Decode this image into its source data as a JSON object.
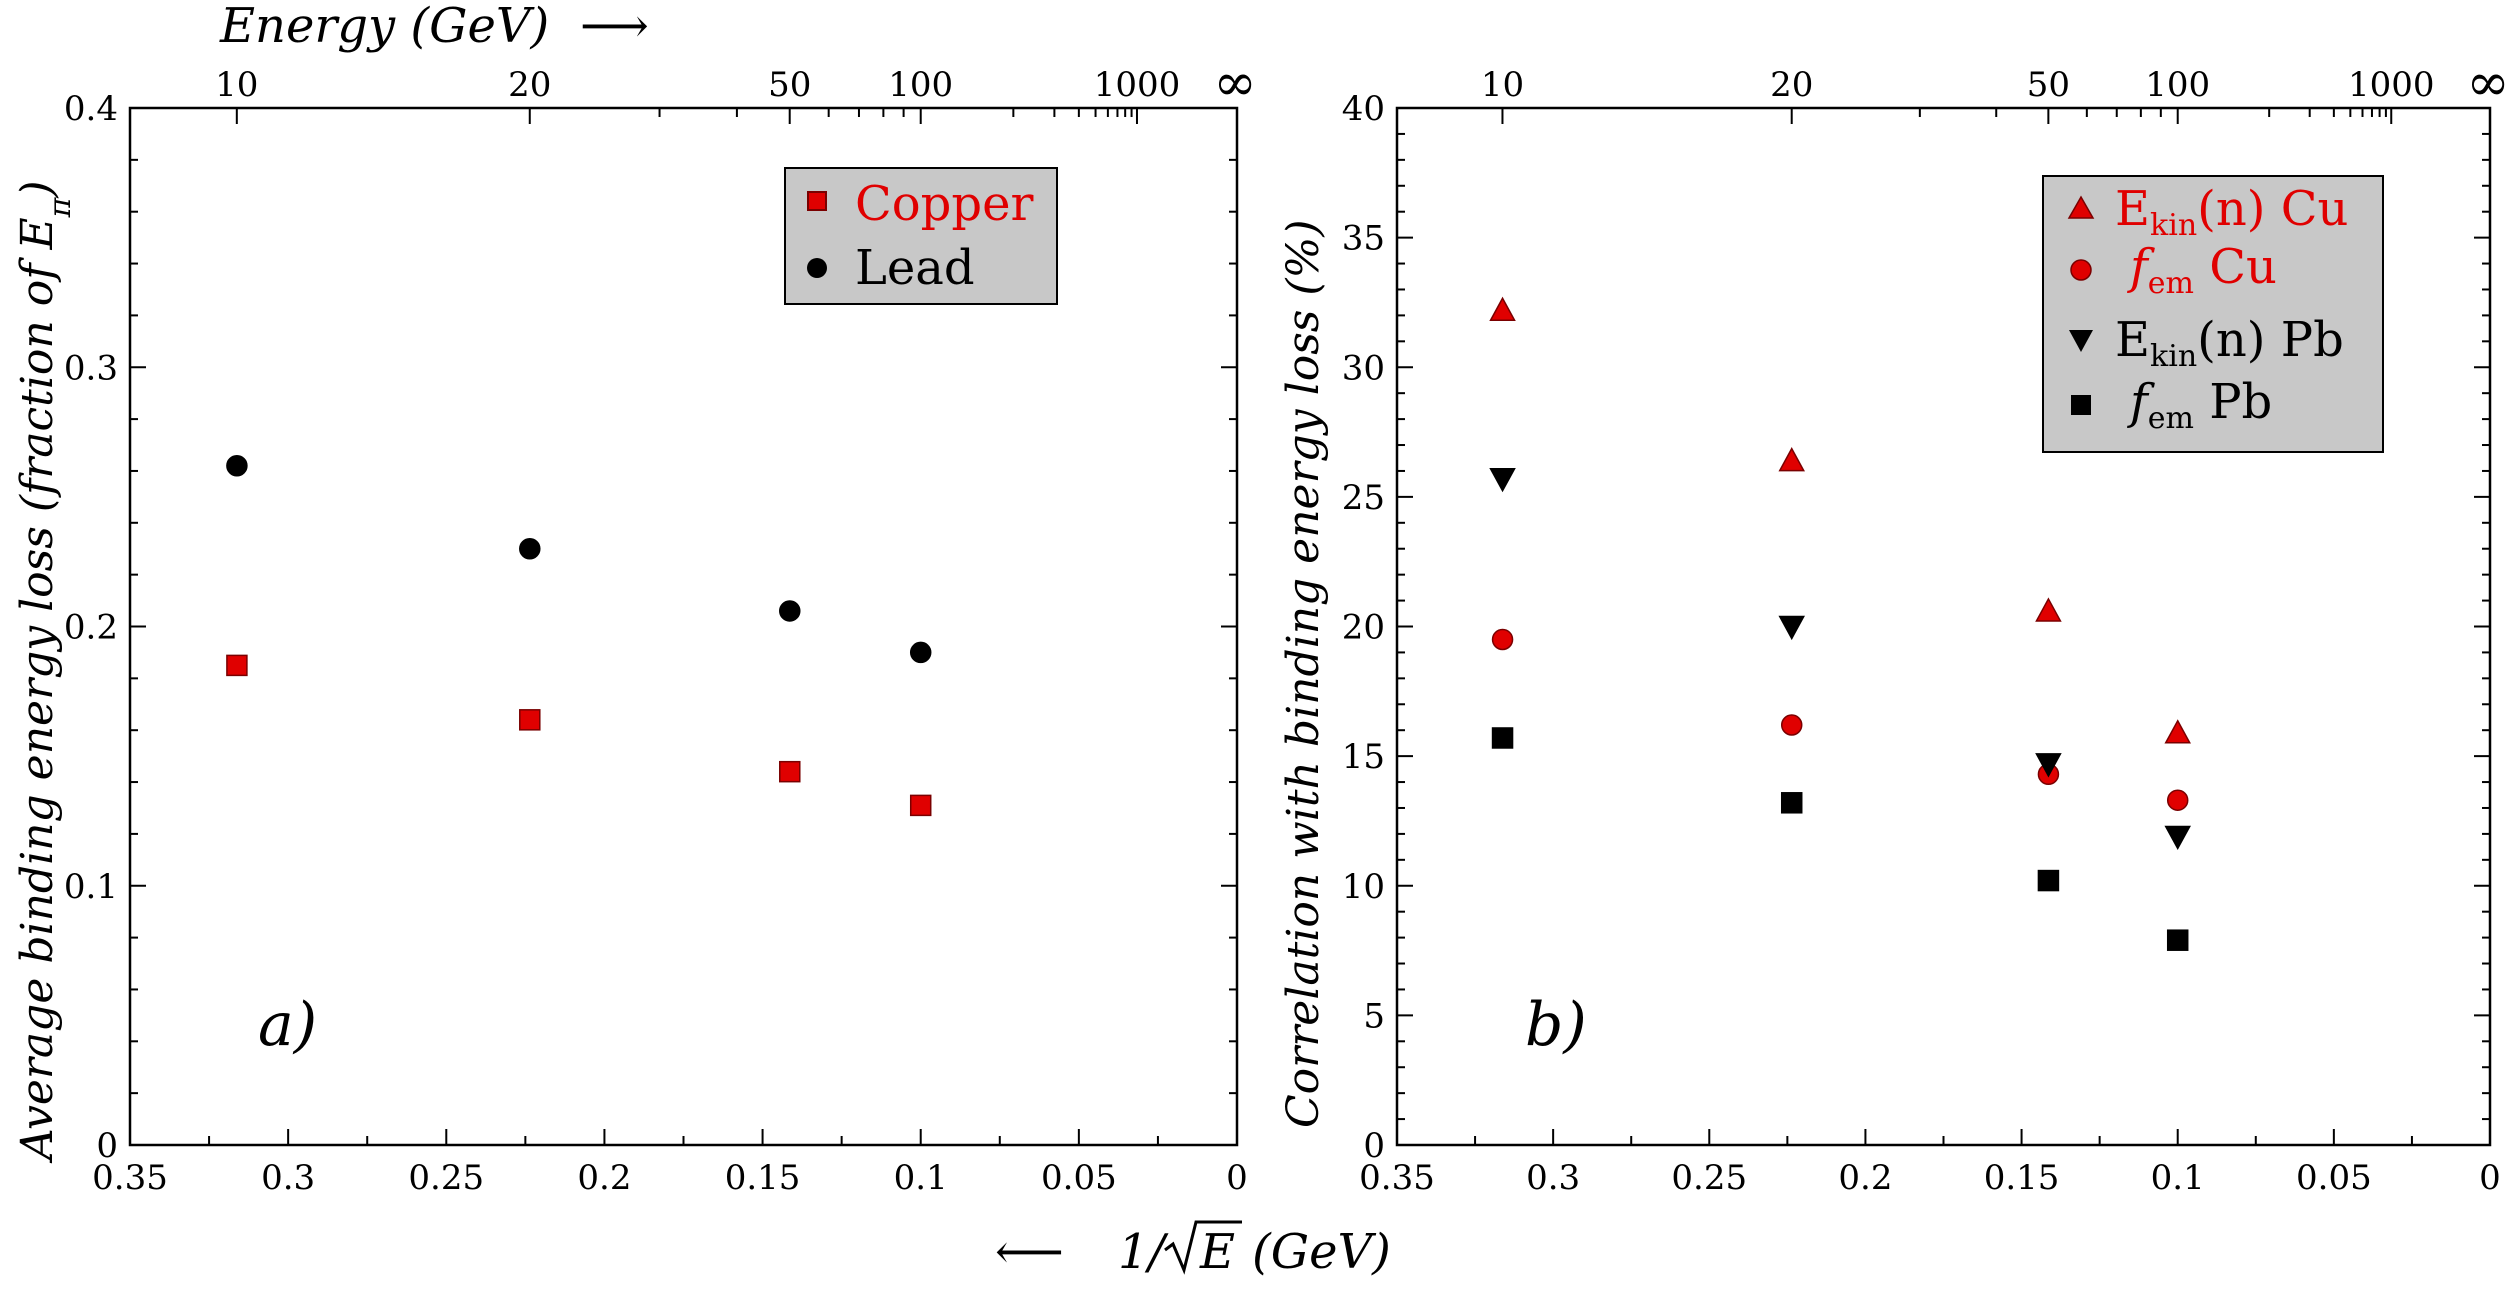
{
  "chart_data": [
    {
      "type": "scatter",
      "panel_tag": "a)",
      "ylabel_prefix": "Average binding energy loss (fraction of E",
      "ylabel_sub": "π",
      "ylabel_suffix": ")",
      "xlim": [
        0.35,
        0
      ],
      "ylim": [
        0,
        0.4
      ],
      "x_ticks": [
        "0.35",
        "0.3",
        "0.25",
        "0.2",
        "0.15",
        "0.1",
        "0.05",
        "0"
      ],
      "y_ticks": [
        "0",
        "0.1",
        "0.2",
        "0.3",
        "0.4"
      ],
      "top_ticks": [
        "10",
        "20",
        "50",
        "100",
        "1000"
      ],
      "legend_position": "top-right",
      "series": [
        {
          "name": "Copper",
          "marker": "square",
          "color": "#e00000",
          "x": [
            0.3162,
            0.2236,
            0.1414,
            0.1
          ],
          "y": [
            0.185,
            0.164,
            0.144,
            0.131
          ]
        },
        {
          "name": "Lead",
          "marker": "circle",
          "color": "#000000",
          "x": [
            0.3162,
            0.2236,
            0.1414,
            0.1
          ],
          "y": [
            0.262,
            0.23,
            0.206,
            0.19
          ]
        }
      ]
    },
    {
      "type": "scatter",
      "panel_tag": "b)",
      "ylabel": "Correlation with binding energy loss (%)",
      "xlim": [
        0.35,
        0
      ],
      "ylim": [
        0,
        40
      ],
      "x_ticks": [
        "0.35",
        "0.3",
        "0.25",
        "0.2",
        "0.15",
        "0.1",
        "0.05",
        "0"
      ],
      "y_ticks": [
        "0",
        "5",
        "10",
        "15",
        "20",
        "25",
        "30",
        "35",
        "40"
      ],
      "top_ticks": [
        "10",
        "20",
        "50",
        "100",
        "1000"
      ],
      "legend_position": "top-right",
      "series": [
        {
          "name_main": "E",
          "name_sub": "kin",
          "name_rest": "(n) Cu",
          "marker": "triangle-up",
          "color": "#e00000",
          "x": [
            0.3162,
            0.2236,
            0.1414,
            0.1
          ],
          "y": [
            32.2,
            26.4,
            20.6,
            15.9
          ]
        },
        {
          "name_main": "f",
          "name_sub": "em",
          "name_rest": " Cu",
          "marker": "circle",
          "color": "#e00000",
          "x": [
            0.3162,
            0.2236,
            0.1414,
            0.1
          ],
          "y": [
            19.5,
            16.2,
            14.3,
            13.3
          ]
        },
        {
          "name_main": "E",
          "name_sub": "kin",
          "name_rest": "(n) Pb",
          "marker": "triangle-down",
          "color": "#000000",
          "x": [
            0.3162,
            0.2236,
            0.1414,
            0.1
          ],
          "y": [
            25.7,
            20.0,
            14.7,
            11.9
          ]
        },
        {
          "name_main": "f",
          "name_sub": "em",
          "name_rest": " Pb",
          "marker": "square",
          "color": "#000000",
          "x": [
            0.3162,
            0.2236,
            0.1414,
            0.1
          ],
          "y": [
            15.7,
            13.2,
            10.2,
            7.9
          ]
        }
      ]
    }
  ],
  "top_axis": {
    "title": "Energy (GeV)",
    "arrow": "⟶",
    "infinity": "∞"
  },
  "bottom_axis": {
    "arrow": "⟵",
    "title_pre": "1/",
    "title_var": "E",
    "title_post": "(GeV)"
  }
}
